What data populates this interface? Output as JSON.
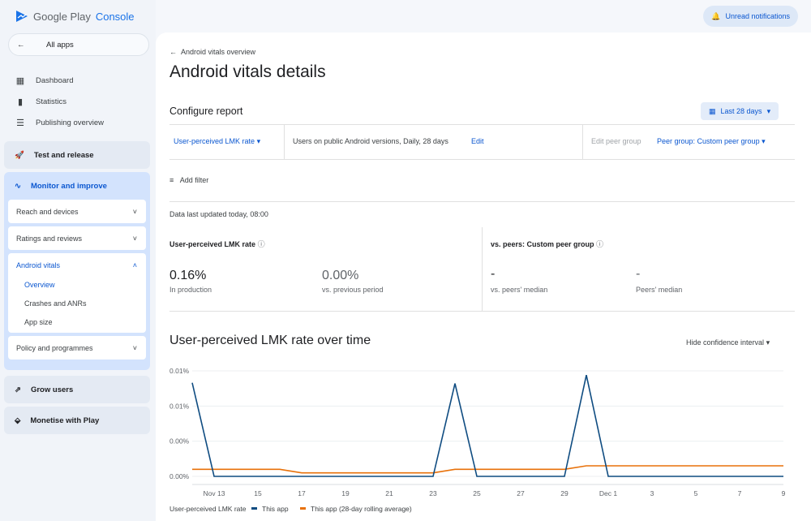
{
  "app": {
    "logo_text": "Google Play",
    "logo_accent": "Console",
    "notifications": "Unread notifications"
  },
  "sidebar": {
    "all_apps": "All apps",
    "items": [
      {
        "label": "Dashboard",
        "icon": "dashboard-icon"
      },
      {
        "label": "Statistics",
        "icon": "bar-chart-icon"
      },
      {
        "label": "Publishing overview",
        "icon": "schedule-list-icon"
      }
    ],
    "sections": [
      {
        "label": "Test and release"
      },
      {
        "label": "Monitor and improve"
      },
      {
        "label": "Grow users"
      },
      {
        "label": "Monetise with Play"
      }
    ],
    "monitor_cards": [
      {
        "label": "Reach and devices"
      },
      {
        "label": "Ratings and reviews"
      },
      {
        "label": "Android vitals",
        "expanded": true,
        "children": [
          "Overview",
          "Crashes and ANRs",
          "App size"
        ]
      },
      {
        "label": "Policy and programmes"
      }
    ]
  },
  "page": {
    "back": "Android vitals overview",
    "title": "Android vitals details",
    "configure": "Configure report",
    "date_range": "Last 28 days",
    "metric": "User-perceived LMK rate",
    "population": "Users on public Android versions, Daily, 28 days",
    "edit": "Edit",
    "edit_peer": "Edit peer group",
    "peer_group": "Peer group: Custom peer group",
    "add_filter": "Add filter",
    "updated": "Data last updated today, 08:00"
  },
  "summary": {
    "left_title": "User-perceived LMK rate",
    "value": "0.16%",
    "value_label": "In production",
    "change": "0.00%",
    "change_label": "vs. previous period",
    "right_title": "vs. peers: Custom peer group",
    "peer_value": "-",
    "peer_value_label": "vs. peers' median",
    "median": "-",
    "median_label": "Peers' median"
  },
  "chart_title": "User-perceived LMK rate over time",
  "ci_toggle": "Hide confidence interval",
  "chart_data": {
    "type": "line",
    "ylim": [
      0,
      0.015
    ],
    "y_ticks": [
      {
        "v": 0.015,
        "label": "0.01%"
      },
      {
        "v": 0.01,
        "label": "0.01%"
      },
      {
        "v": 0.005,
        "label": "0.00%"
      },
      {
        "v": 0,
        "label": "0.00%"
      }
    ],
    "x": [
      "Nov 12",
      "Nov 13",
      "Nov 14",
      "Nov 15",
      "Nov 16",
      "Nov 17",
      "Nov 18",
      "Nov 19",
      "Nov 20",
      "Nov 21",
      "Nov 22",
      "Nov 23",
      "Nov 24",
      "Nov 25",
      "Nov 26",
      "Nov 27",
      "Nov 28",
      "Nov 29",
      "Nov 30",
      "Dec 1",
      "Dec 2",
      "Dec 3",
      "Dec 4",
      "Dec 5",
      "Dec 6",
      "Dec 7",
      "Dec 8",
      "Dec 9"
    ],
    "x_tick_labels": [
      "Nov 13",
      "15",
      "17",
      "19",
      "21",
      "23",
      "25",
      "27",
      "29",
      "Dec 1",
      "3",
      "5",
      "7",
      "9"
    ],
    "legend_title": "User-perceived LMK rate",
    "series": [
      {
        "name": "This app",
        "color": "#0f4c81",
        "values": [
          0.0133,
          0,
          0,
          0,
          0,
          0,
          0,
          0,
          0,
          0,
          0,
          0,
          0.0132,
          0,
          0,
          0,
          0,
          0,
          0.0144,
          0,
          0,
          0,
          0,
          0,
          0,
          0,
          0,
          0
        ]
      },
      {
        "name": "This app (28-day rolling average)",
        "color": "#e8710a",
        "values": [
          0.001,
          0.001,
          0.001,
          0.001,
          0.001,
          0.0005,
          0.0005,
          0.0005,
          0.0005,
          0.0005,
          0.0005,
          0.0005,
          0.001,
          0.001,
          0.001,
          0.001,
          0.001,
          0.001,
          0.0015,
          0.0015,
          0.0015,
          0.0015,
          0.0015,
          0.0015,
          0.0015,
          0.0015,
          0.0015,
          0.0015
        ]
      }
    ]
  }
}
